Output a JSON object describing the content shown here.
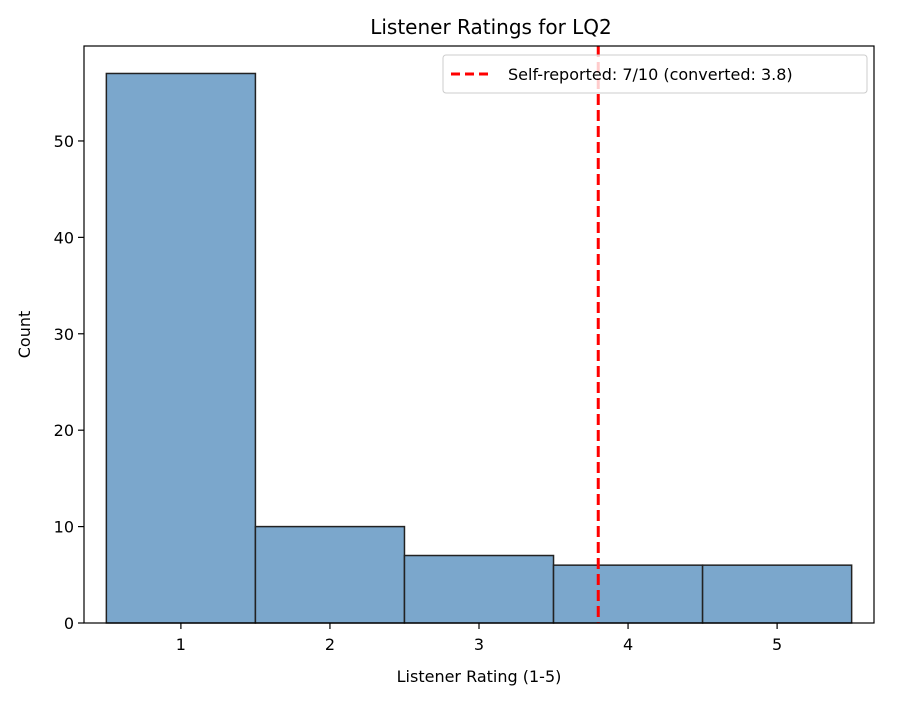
{
  "chart_data": {
    "type": "bar",
    "title": "Listener Ratings for LQ2",
    "xlabel": "Listener Rating (1-5)",
    "ylabel": "Count",
    "categories": [
      "1",
      "2",
      "3",
      "4",
      "5"
    ],
    "x": [
      1,
      2,
      3,
      4,
      5
    ],
    "values": [
      57,
      10,
      7,
      6,
      6
    ],
    "xlim": [
      0.35,
      5.65
    ],
    "ylim": [
      0,
      59.85
    ],
    "yticks": [
      0,
      10,
      20,
      30,
      40,
      50
    ],
    "bar_color": "#7BA7CC",
    "bar_edge_color": "#222222",
    "grid": false,
    "legend_position": "top-right",
    "reference_line": {
      "x": 3.8,
      "label": "Self-reported: 7/10 (converted: 3.8)",
      "color": "#ff0000",
      "style": "dashed"
    }
  }
}
